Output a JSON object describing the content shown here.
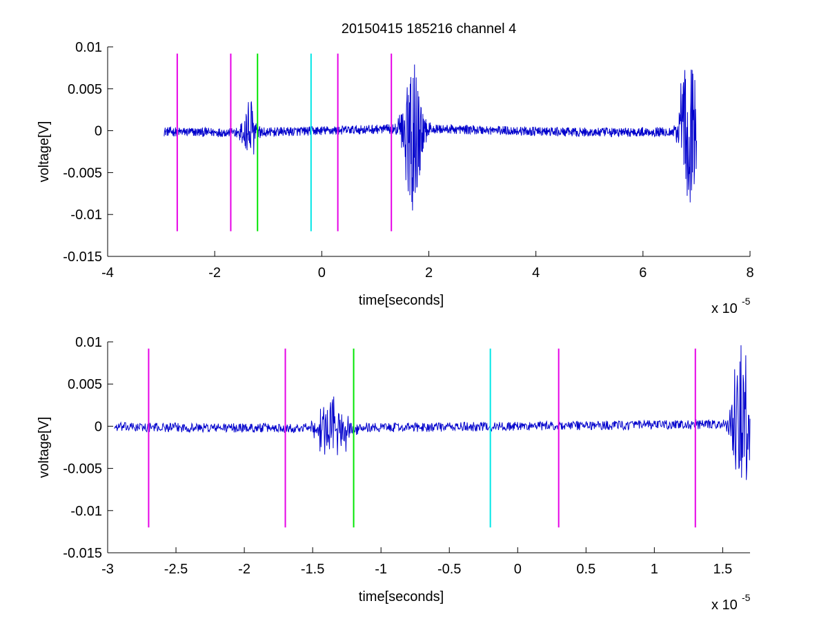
{
  "chart_data": [
    {
      "type": "line",
      "title": "20150415 185216 channel 4",
      "xlabel": "time[seconds]",
      "ylabel": "voltage[V]",
      "x_exponent_label": "x 10",
      "x_exponent": "-5",
      "xlim": [
        -4,
        8
      ],
      "ylim": [
        -0.015,
        0.01
      ],
      "xticks": [
        "-4",
        "-2",
        "0",
        "2",
        "4",
        "6",
        "8"
      ],
      "xtick_values": [
        -4,
        -2,
        0,
        2,
        4,
        6,
        8
      ],
      "yticks": [
        "0.01",
        "0.005",
        "0",
        "-0.005",
        "-0.01",
        "-0.015"
      ],
      "ytick_values": [
        0.01,
        0.005,
        0,
        -0.005,
        -0.01,
        -0.015
      ],
      "series_color": "#0000cc",
      "trace_range": [
        -2.95,
        7.0
      ],
      "bursts": [
        {
          "center": -1.35,
          "amp": 0.004,
          "width": 0.25
        },
        {
          "center": 1.7,
          "amp": 0.0095,
          "width": 0.3
        },
        {
          "center": 6.85,
          "amp": 0.009,
          "width": 0.3
        }
      ],
      "markers": [
        {
          "x": -2.7,
          "color": "#e600e6"
        },
        {
          "x": -1.7,
          "color": "#e600e6"
        },
        {
          "x": -1.2,
          "color": "#00e600"
        },
        {
          "x": -0.2,
          "color": "#00e6e6"
        },
        {
          "x": 0.3,
          "color": "#e600e6"
        },
        {
          "x": 1.3,
          "color": "#e600e6"
        }
      ],
      "marker_y_range": [
        -0.012,
        0.0092
      ]
    },
    {
      "type": "line",
      "xlabel": "time[seconds]",
      "ylabel": "voltage[V]",
      "x_exponent_label": "x 10",
      "x_exponent": "-5",
      "xlim": [
        -3.0,
        1.7
      ],
      "ylim": [
        -0.015,
        0.01
      ],
      "xticks": [
        "-3",
        "-2.5",
        "-2",
        "-1.5",
        "-1",
        "-0.5",
        "0",
        "0.5",
        "1",
        "1.5"
      ],
      "xtick_values": [
        -3,
        -2.5,
        -2,
        -1.5,
        -1,
        -0.5,
        0,
        0.5,
        1,
        1.5
      ],
      "yticks": [
        "0.01",
        "0.005",
        "0",
        "-0.005",
        "-0.01",
        "-0.015"
      ],
      "ytick_values": [
        0.01,
        0.005,
        0,
        -0.005,
        -0.01,
        -0.015
      ],
      "series_color": "#0000cc",
      "trace_range": [
        -2.95,
        1.7
      ],
      "bursts": [
        {
          "center": -1.35,
          "amp": 0.004,
          "width": 0.2
        },
        {
          "center": 1.64,
          "amp": 0.0095,
          "width": 0.12
        }
      ],
      "markers": [
        {
          "x": -2.7,
          "color": "#e600e6"
        },
        {
          "x": -1.7,
          "color": "#e600e6"
        },
        {
          "x": -1.2,
          "color": "#00e600"
        },
        {
          "x": -0.2,
          "color": "#00e6e6"
        },
        {
          "x": 0.3,
          "color": "#e600e6"
        },
        {
          "x": 1.3,
          "color": "#e600e6"
        }
      ],
      "marker_y_range": [
        -0.012,
        0.0092
      ]
    }
  ]
}
